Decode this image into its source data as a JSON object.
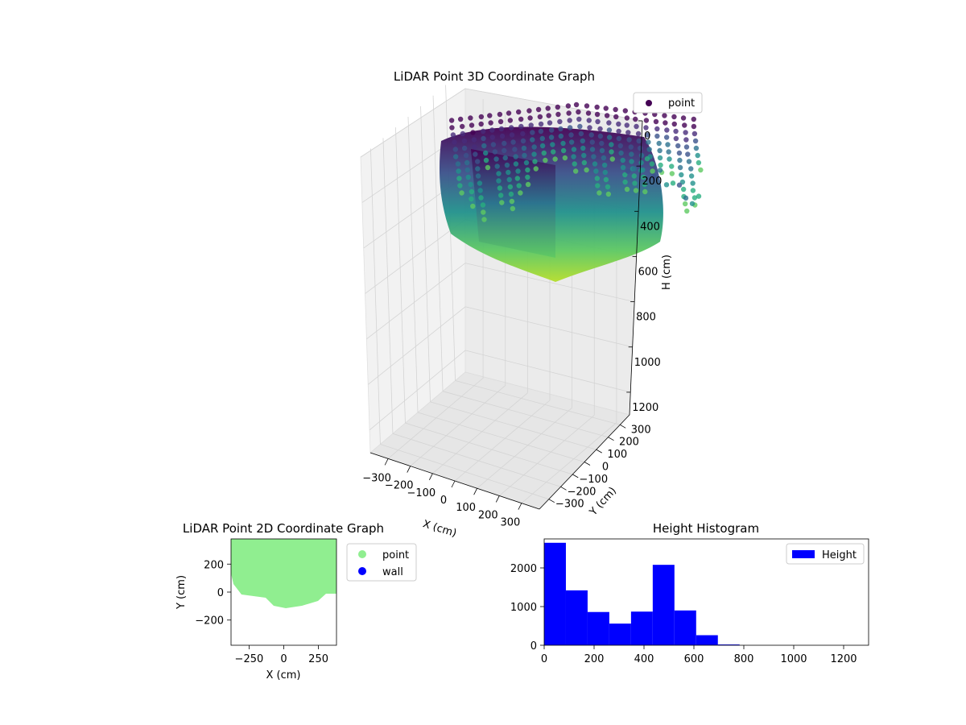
{
  "chart_data": [
    {
      "type": "scatter",
      "title": "LiDAR Point 3D Coordinate Graph",
      "xlabel": "X (cm)",
      "ylabel": "Y (cm)",
      "zlabel": "H (cm)",
      "projection": "3d",
      "z_axis_inverted": true,
      "xlim": [
        -380,
        380
      ],
      "ylim": [
        -380,
        380
      ],
      "zlim": [
        0,
        1300
      ],
      "x_ticks": [
        "−300",
        "−200",
        "−100",
        "0",
        "100",
        "200",
        "300"
      ],
      "y_ticks": [
        "−300",
        "−200",
        "−100",
        "0",
        "100",
        "200",
        "300"
      ],
      "z_ticks": [
        "0",
        "200",
        "400",
        "600",
        "800",
        "1000",
        "1200"
      ],
      "colormap": "viridis",
      "legend": {
        "position": "top-right",
        "entries": [
          {
            "label": "point",
            "color": "#440154"
          }
        ]
      },
      "grid": true
    },
    {
      "type": "scatter",
      "title": "LiDAR Point 2D Coordinate Graph",
      "xlabel": "X (cm)",
      "ylabel": "Y (cm)",
      "xlim": [
        -380,
        380
      ],
      "ylim": [
        -380,
        380
      ],
      "x_ticks": [
        "−250",
        "0",
        "250"
      ],
      "y_ticks": [
        "−200",
        "0",
        "200"
      ],
      "series": [
        {
          "name": "point",
          "color": "#90ee90"
        },
        {
          "name": "wall",
          "color": "#0000ff"
        }
      ],
      "legend": {
        "position": "outside-right"
      },
      "grid": false
    },
    {
      "type": "bar",
      "title": "Height Histogram",
      "xlabel": "",
      "ylabel": "",
      "bin_edges": [
        0,
        87,
        174,
        261,
        348,
        435,
        522,
        609,
        696,
        783,
        870,
        957,
        1044,
        1131,
        1218
      ],
      "series": [
        {
          "name": "Height",
          "color": "#0000ff",
          "values": [
            2650,
            1420,
            860,
            560,
            870,
            2080,
            900,
            260,
            20,
            0,
            0,
            0,
            0,
            0
          ]
        }
      ],
      "xlim": [
        0,
        1300
      ],
      "ylim": [
        0,
        2750
      ],
      "x_ticks": [
        "0",
        "200",
        "400",
        "600",
        "800",
        "1000",
        "1200"
      ],
      "y_ticks": [
        "0",
        "1000",
        "2000"
      ],
      "legend": {
        "position": "top-right"
      },
      "grid": false
    }
  ]
}
